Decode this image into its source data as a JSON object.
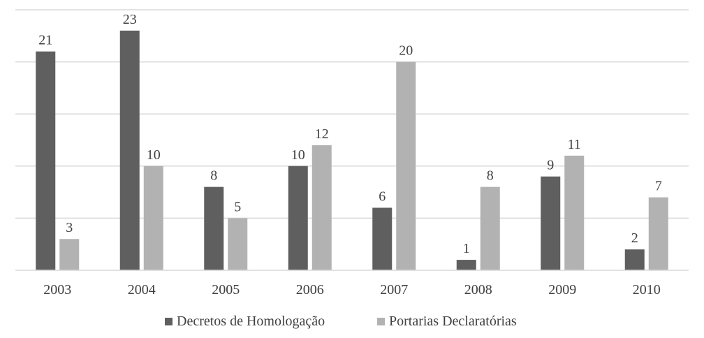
{
  "chart_data": {
    "type": "bar",
    "categories": [
      "2003",
      "2004",
      "2005",
      "2006",
      "2007",
      "2008",
      "2009",
      "2010"
    ],
    "series": [
      {
        "name": "Decretos de Homologação",
        "values": [
          21,
          23,
          8,
          10,
          6,
          1,
          9,
          2
        ],
        "color": "#5f5f5f"
      },
      {
        "name": "Portarias Declaratórias",
        "values": [
          3,
          10,
          5,
          12,
          20,
          8,
          11,
          7
        ],
        "color": "#b2b2b2"
      }
    ],
    "ylim": [
      0,
      25
    ],
    "grid": true,
    "legend_position": "bottom"
  }
}
